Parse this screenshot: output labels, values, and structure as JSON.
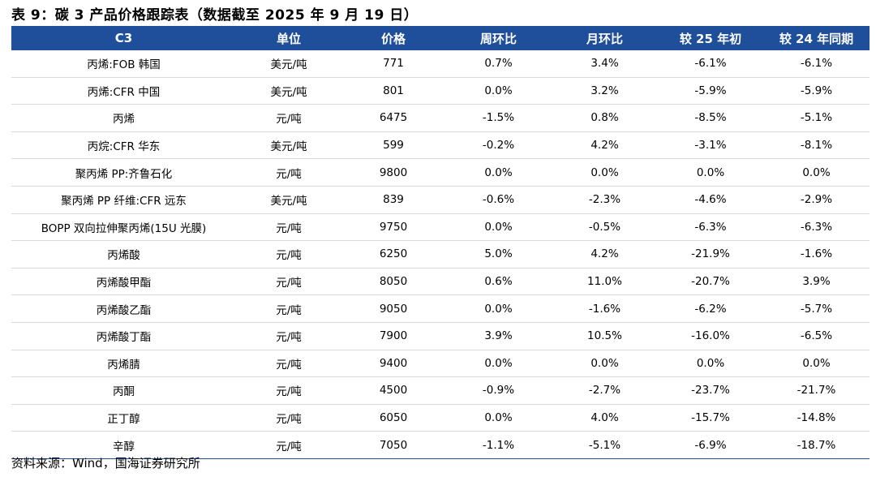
{
  "caption": "表 9：碳 3 产品价格跟踪表（数据截至 2025 年 9 月 19 日）",
  "headers": [
    "C3",
    "单位",
    "价格",
    "周环比",
    "月环比",
    "较 25 年初",
    "较 24 年同期"
  ],
  "rows": [
    [
      "丙烯:FOB 韩国",
      "美元/吨",
      "771",
      "0.7%",
      "3.4%",
      "-6.1%",
      "-6.1%"
    ],
    [
      "丙烯:CFR 中国",
      "美元/吨",
      "801",
      "0.0%",
      "3.2%",
      "-5.9%",
      "-5.9%"
    ],
    [
      "丙烯",
      "元/吨",
      "6475",
      "-1.5%",
      "0.8%",
      "-8.5%",
      "-5.1%"
    ],
    [
      "丙烷:CFR 华东",
      "美元/吨",
      "599",
      "-0.2%",
      "4.2%",
      "-3.1%",
      "-8.1%"
    ],
    [
      "聚丙烯 PP:齐鲁石化",
      "元/吨",
      "9800",
      "0.0%",
      "0.0%",
      "0.0%",
      "0.0%"
    ],
    [
      "聚丙烯 PP 纤维:CFR 远东",
      "美元/吨",
      "839",
      "-0.6%",
      "-2.3%",
      "-4.6%",
      "-2.9%"
    ],
    [
      "BOPP 双向拉伸聚丙烯(15U 光膜)",
      "元/吨",
      "9750",
      "0.0%",
      "-0.5%",
      "-6.3%",
      "-6.3%"
    ],
    [
      "丙烯酸",
      "元/吨",
      "6250",
      "5.0%",
      "4.2%",
      "-21.9%",
      "-1.6%"
    ],
    [
      "丙烯酸甲酯",
      "元/吨",
      "8050",
      "0.6%",
      "11.0%",
      "-20.7%",
      "3.9%"
    ],
    [
      "丙烯酸乙酯",
      "元/吨",
      "9050",
      "0.0%",
      "-1.6%",
      "-6.2%",
      "-5.7%"
    ],
    [
      "丙烯酸丁酯",
      "元/吨",
      "7900",
      "3.9%",
      "10.5%",
      "-16.0%",
      "-6.5%"
    ],
    [
      "丙烯腈",
      "元/吨",
      "9400",
      "0.0%",
      "0.0%",
      "0.0%",
      "0.0%"
    ],
    [
      "丙酮",
      "元/吨",
      "4500",
      "-0.9%",
      "-2.7%",
      "-23.7%",
      "-21.7%"
    ],
    [
      "正丁醇",
      "元/吨",
      "6050",
      "0.0%",
      "4.0%",
      "-15.7%",
      "-14.8%"
    ],
    [
      "辛醇",
      "元/吨",
      "7050",
      "-1.1%",
      "-5.1%",
      "-6.9%",
      "-18.7%"
    ]
  ],
  "source": "资料来源：Wind，国海证券研究所"
}
